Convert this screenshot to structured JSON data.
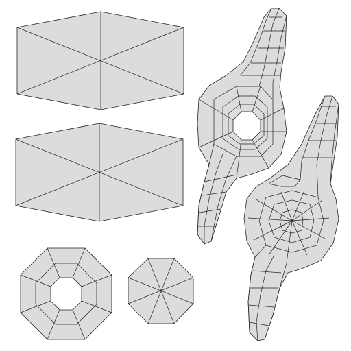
{
  "colors": {
    "background": "#ffffff",
    "face_fill": "#dcdcdc",
    "edge": "#222222"
  },
  "islands": [
    "upper-hexagon-island",
    "lower-hexagon-island",
    "octagon-ring-island",
    "octagon-fan-island",
    "upper-wing-island",
    "lower-wing-island"
  ]
}
